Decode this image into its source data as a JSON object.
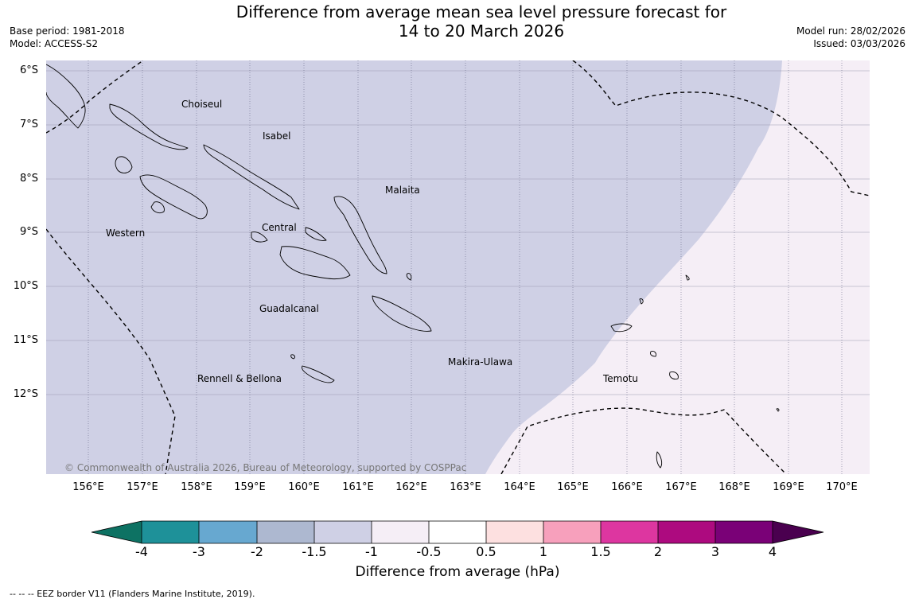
{
  "title": {
    "line1": "Difference from average mean sea level pressure forecast for",
    "line2": "14 to 20 March 2026"
  },
  "meta_left": {
    "base_period": "Base period: 1981-2018",
    "model": "Model: ACCESS-S2"
  },
  "meta_right": {
    "model_run": "Model run: 28/02/2026",
    "issued": "Issued: 03/03/2026"
  },
  "map": {
    "latitude_labels": [
      "6°S",
      "7°S",
      "8°S",
      "9°S",
      "10°S",
      "11°S",
      "12°S"
    ],
    "longitude_labels": [
      "156°E",
      "157°E",
      "158°E",
      "159°E",
      "160°E",
      "161°E",
      "162°E",
      "163°E",
      "164°E",
      "165°E",
      "166°E",
      "167°E",
      "168°E",
      "169°E",
      "170°E"
    ],
    "regions": [
      "Choiseul",
      "Isabel",
      "Malaita",
      "Western",
      "Central",
      "Guadalcanal",
      "Makira-Ulawa",
      "Rennell & Bellona",
      "Temotu"
    ],
    "copyright": "© Commonwealth of Australia 2026, Bureau of Meteorology, supported by COSPPac",
    "fill_colors": {
      "west_anomaly": "#cfd0e5",
      "east_anomaly": "#f5eef6"
    }
  },
  "colorbar": {
    "ticks": [
      "-4",
      "-3",
      "-2",
      "-1.5",
      "-1",
      "-0.5",
      "0.5",
      "1",
      "1.5",
      "2",
      "3",
      "4"
    ],
    "colors": [
      "#0d7263",
      "#1e9199",
      "#67a8d0",
      "#adb8d0",
      "#cfd0e5",
      "#f5eef6",
      "#ffffff",
      "#fde0e0",
      "#f7a0bc",
      "#dd36a0",
      "#ad0a7f",
      "#7a0177",
      "#4a004f"
    ],
    "label": "Difference from average (hPa)"
  },
  "footnote": "--  --  -- EEZ border V11 (Flanders Marine Institute, 2019)."
}
